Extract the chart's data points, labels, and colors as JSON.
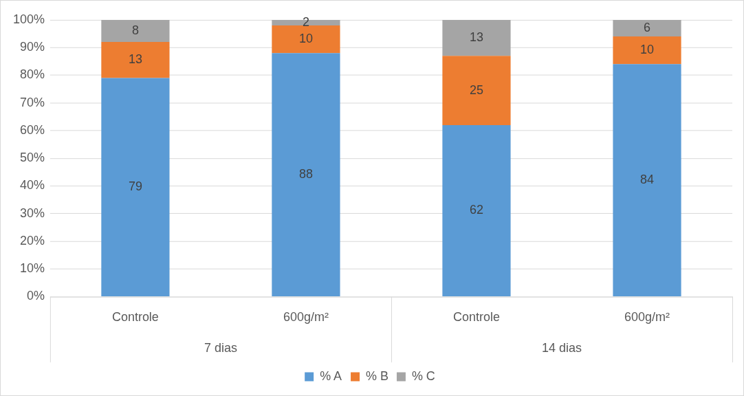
{
  "chart_data": {
    "type": "bar",
    "stacked": true,
    "categories": [
      "Controle",
      "600g/m²",
      "Controle",
      "600g/m²"
    ],
    "series": [
      {
        "name": "% A",
        "color": "#5b9bd5",
        "values": [
          79,
          88,
          62,
          84
        ]
      },
      {
        "name": "% B",
        "color": "#ed7d31",
        "values": [
          13,
          10,
          25,
          10
        ]
      },
      {
        "name": "% C",
        "color": "#a5a5a5",
        "values": [
          8,
          2,
          13,
          6
        ]
      }
    ],
    "ylim": [
      0,
      100
    ],
    "yticks": [
      {
        "value": 0,
        "label": "0%"
      },
      {
        "value": 10,
        "label": "10%"
      },
      {
        "value": 20,
        "label": "20%"
      },
      {
        "value": 30,
        "label": "30%"
      },
      {
        "value": 40,
        "label": "40%"
      },
      {
        "value": 50,
        "label": "50%"
      },
      {
        "value": 60,
        "label": "60%"
      },
      {
        "value": 70,
        "label": "70%"
      },
      {
        "value": 80,
        "label": "80%"
      },
      {
        "value": 90,
        "label": "90%"
      },
      {
        "value": 100,
        "label": "100%"
      }
    ],
    "grid": "y",
    "legend": "bottom",
    "data_labels": true,
    "annotations": [
      "7 dias",
      "14 dias"
    ]
  }
}
